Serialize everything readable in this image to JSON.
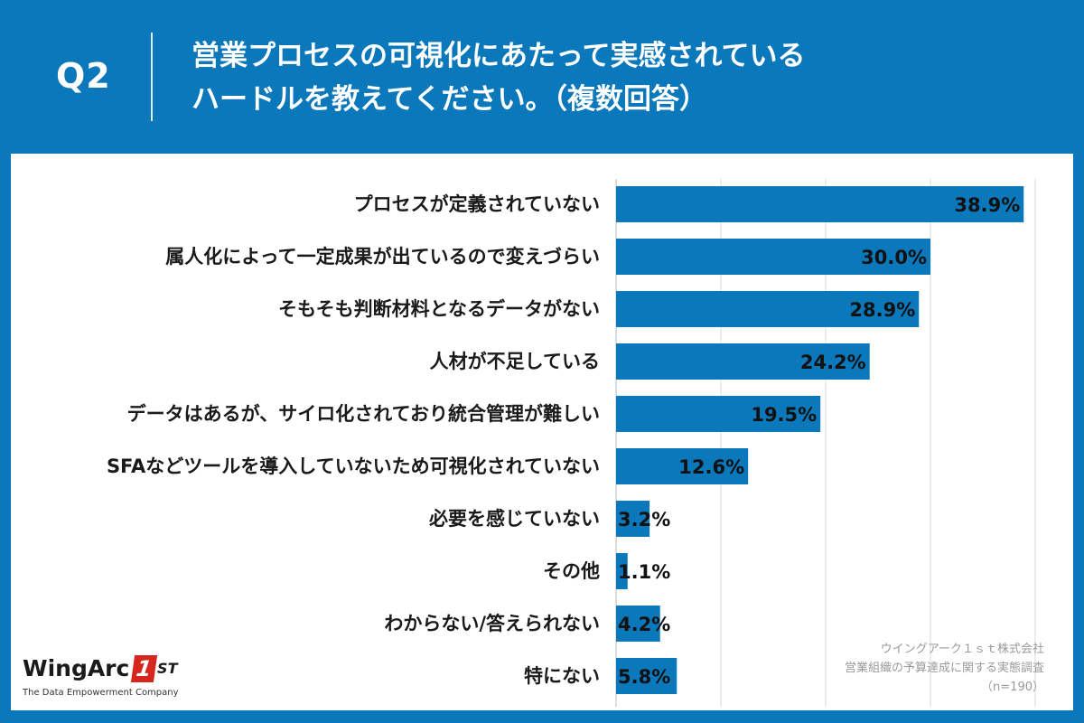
{
  "header": {
    "qnum": "Q2",
    "title_line1": "営業プロセスの可視化にあたって実感されている",
    "title_line2": "ハードルを教えてください。（複数回答）"
  },
  "chart_data": {
    "type": "bar",
    "orientation": "horizontal",
    "categories": [
      "プロセスが定義されていない",
      "属人化によって一定成果が出ているので変えづらい",
      "そもそも判断材料となるデータがない",
      "人材が不足している",
      "データはあるが、サイロ化されており統合管理が難しい",
      "SFAなどツールを導入していないため可視化されていない",
      "必要を感じていない",
      "その他",
      "わからない/答えられない",
      "特にない"
    ],
    "values": [
      38.9,
      30.0,
      28.9,
      24.2,
      19.5,
      12.6,
      3.2,
      1.1,
      4.2,
      5.8
    ],
    "value_labels": [
      "38.9%",
      "30.0%",
      "28.9%",
      "24.2%",
      "19.5%",
      "12.6%",
      "3.2%",
      "1.1%",
      "4.2%",
      "5.8%"
    ],
    "xlim": [
      0,
      40
    ],
    "grid": true,
    "bar_color": "#0b78bc"
  },
  "source": {
    "company": "ウイングアーク１ｓｔ株式会社",
    "survey": "営業組織の予算達成に関する実態調査",
    "sample": "（n=190）"
  },
  "logo": {
    "name": "WingArc",
    "mark": "1",
    "suffix": "ST",
    "tagline": "The Data Empowerment Company"
  }
}
